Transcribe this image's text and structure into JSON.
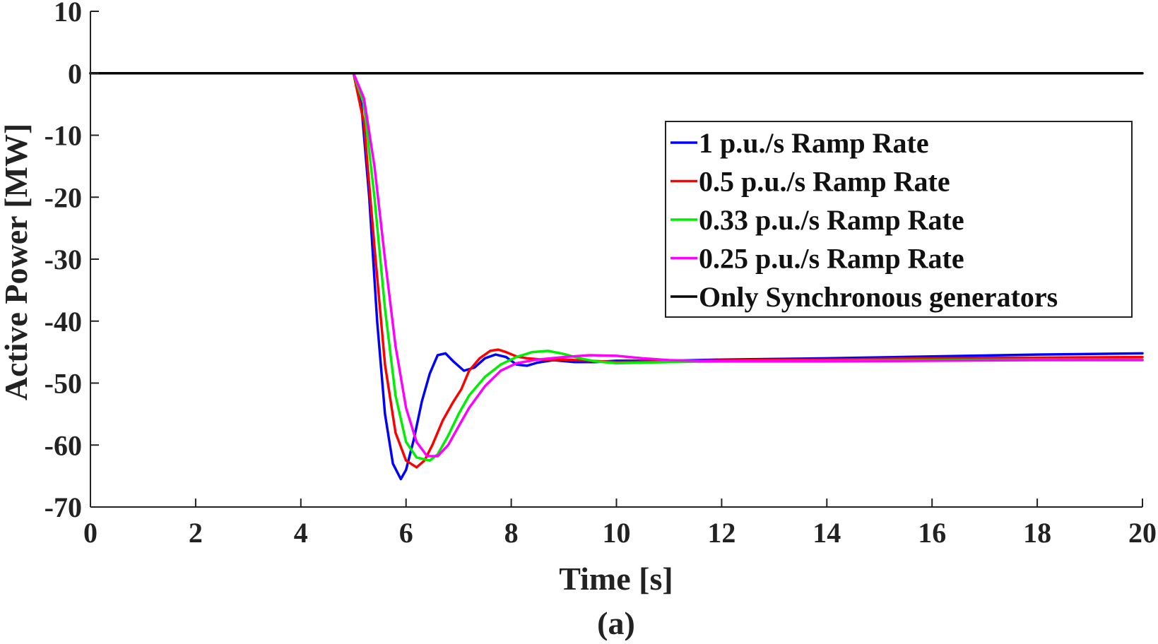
{
  "chart_data": {
    "type": "line",
    "xlabel": "Time [s]",
    "ylabel": "Active Power [MW]",
    "caption": "(a)",
    "xlim": [
      0,
      20
    ],
    "ylim": [
      -70,
      10
    ],
    "xticks": [
      0,
      2,
      4,
      6,
      8,
      10,
      12,
      14,
      16,
      18,
      20
    ],
    "yticks": [
      10,
      0,
      -10,
      -20,
      -30,
      -40,
      -50,
      -60,
      -70
    ],
    "legend_position": "top-right",
    "grid": false,
    "series": [
      {
        "name": "1 p.u./s Ramp Rate",
        "color": "#0000ff",
        "x": [
          0,
          5.0,
          5.15,
          5.3,
          5.45,
          5.6,
          5.75,
          5.9,
          6.0,
          6.15,
          6.3,
          6.45,
          6.6,
          6.75,
          6.9,
          7.1,
          7.3,
          7.5,
          7.7,
          7.9,
          8.1,
          8.3,
          8.5,
          8.8,
          9.2,
          9.6,
          10,
          11,
          12,
          14,
          16,
          18,
          20
        ],
        "y": [
          0,
          0,
          -5,
          -20,
          -40,
          -55,
          -63,
          -65.5,
          -64,
          -59,
          -53,
          -48.5,
          -45.5,
          -45.2,
          -46.5,
          -48,
          -47.5,
          -46,
          -45.4,
          -45.8,
          -47,
          -47.2,
          -46.7,
          -46.3,
          -46.6,
          -46.6,
          -46.4,
          -46.4,
          -46.2,
          -46.0,
          -45.7,
          -45.4,
          -45.2
        ]
      },
      {
        "name": "0.5 p.u./s Ramp Rate",
        "color": "#ff0000",
        "x": [
          0,
          5.0,
          5.2,
          5.4,
          5.6,
          5.8,
          6.0,
          6.2,
          6.35,
          6.5,
          6.7,
          6.9,
          7.05,
          7.2,
          7.4,
          7.6,
          7.75,
          7.9,
          8.1,
          8.3,
          8.6,
          9.0,
          9.5,
          10,
          11,
          12,
          14,
          16,
          18,
          20
        ],
        "y": [
          0,
          0,
          -8,
          -28,
          -47,
          -58,
          -62.5,
          -63.6,
          -62.5,
          -60,
          -56,
          -53,
          -51,
          -48,
          -46,
          -44.8,
          -44.6,
          -45,
          -45.7,
          -46,
          -46.2,
          -46.2,
          -46.4,
          -46.6,
          -46.5,
          -46.3,
          -46.2,
          -46.0,
          -45.9,
          -45.8
        ]
      },
      {
        "name": "0.33 p.u./s Ramp Rate",
        "color": "#00ee00",
        "x": [
          0,
          5.0,
          5.2,
          5.4,
          5.6,
          5.8,
          6.0,
          6.2,
          6.45,
          6.6,
          6.8,
          7.0,
          7.2,
          7.5,
          7.8,
          8.1,
          8.4,
          8.7,
          9.0,
          9.3,
          9.6,
          10,
          11,
          12,
          14,
          16,
          18,
          20
        ],
        "y": [
          0,
          0,
          -5,
          -20,
          -38,
          -52,
          -59.5,
          -62,
          -62.5,
          -61.5,
          -58.5,
          -55,
          -52,
          -49,
          -47,
          -45.8,
          -45.0,
          -44.8,
          -45.3,
          -46,
          -46.5,
          -46.8,
          -46.6,
          -46.5,
          -46.4,
          -46.3,
          -46.2,
          -46.2
        ]
      },
      {
        "name": "0.25 p.u./s Ramp Rate",
        "color": "#ff00ff",
        "x": [
          0,
          5.0,
          5.2,
          5.4,
          5.6,
          5.8,
          6.0,
          6.2,
          6.4,
          6.6,
          6.8,
          7.0,
          7.2,
          7.5,
          7.8,
          8.1,
          8.5,
          9.0,
          9.5,
          10,
          10.5,
          11,
          12,
          14,
          16,
          18,
          20
        ],
        "y": [
          0,
          0,
          -4,
          -15,
          -30,
          -44,
          -54,
          -59.5,
          -61.8,
          -61.8,
          -60,
          -57,
          -54,
          -50.5,
          -48,
          -46.8,
          -46.2,
          -45.8,
          -45.5,
          -45.6,
          -46,
          -46.3,
          -46.5,
          -46.5,
          -46.4,
          -46.3,
          -46.3
        ]
      },
      {
        "name": "Only Synchronous generators",
        "color": "#000000",
        "x": [
          0,
          20
        ],
        "y": [
          0,
          0
        ]
      }
    ]
  }
}
